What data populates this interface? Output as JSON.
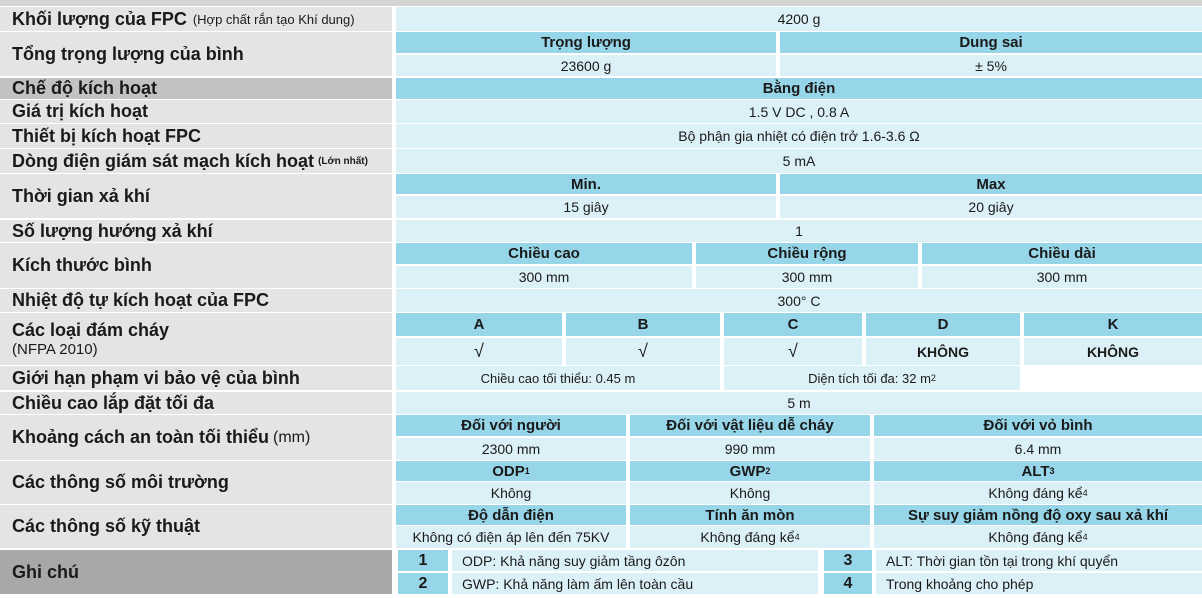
{
  "labels": {
    "mass_fpc": "Khối lượng của FPC",
    "mass_fpc_note": "(Hợp chất rắn tạo Khí dung)",
    "total_weight": "Tổng trọng lượng của bình",
    "activation_mode": "Chế độ kích hoạt",
    "activation_value": "Giá trị kích hoạt",
    "activation_device": "Thiết bị kích hoạt FPC",
    "monitor_current": "Dòng điện giám sát mạch kích hoạt",
    "monitor_current_note": "(Lớn nhất)",
    "discharge_time": "Thời gian xả khí",
    "discharge_dirs": "Số lượng hướng xả khí",
    "size": "Kích thước bình",
    "self_activation": "Nhiệt độ tự kích hoạt của FPC",
    "fire_classes": "Các loại đám cháy",
    "fire_classes_note": "(NFPA 2010)",
    "coverage_limit": "Giới hạn phạm vi bảo vệ của  bình",
    "max_height": "Chiều cao lắp đặt tối đa",
    "safe_distance": "Khoảng cách an toàn tối thiểu",
    "safe_distance_unit": "(mm)",
    "environment": "Các thông số môi trường",
    "technical": "Các thông số kỹ thuật",
    "notes": "Ghi chú"
  },
  "values": {
    "mass_fpc": "4200 g",
    "weight_header": "Trọng lượng",
    "tolerance_header": "Dung sai",
    "weight": "23600 g",
    "tolerance": "± 5%",
    "activation_mode": "Bằng điện",
    "activation_value": "1.5 V DC  , 0.8 A",
    "activation_device": "Bộ phận gia nhiệt có điện trở 1.6-3.6 Ω",
    "monitor_current": "5 mA",
    "min_header": "Min.",
    "max_header": "Max",
    "min_time": "15 giây",
    "max_time": "20 giây",
    "discharge_dirs": "1",
    "height_header": "Chiều cao",
    "width_header": "Chiều rộng",
    "length_header": "Chiều dài",
    "height": "300 mm",
    "width": "300 mm",
    "length": "300 mm",
    "self_activation": "300° C",
    "class_a": "A",
    "class_b": "B",
    "class_c": "C",
    "class_d": "D",
    "class_k": "K",
    "check": "√",
    "no_d": "KHÔNG",
    "no_k": "KHÔNG",
    "min_height": "Chiều cao tối thiểu:  0.45 m",
    "max_area": "Diện tích tối đa: 32 m",
    "max_area_sup": "2",
    "max_install_height": "5 m",
    "people_header": "Đối với người",
    "combustible_header": "Đối với vật liệu dễ cháy",
    "housing_header": "Đối với vỏ bình",
    "people": "2300 mm",
    "combustible": "990 mm",
    "housing": "6.4 mm",
    "odp_header": "ODP",
    "odp_sup": "1",
    "gwp_header": "GWP",
    "gwp_sup": "2",
    "alt_header": "ALT",
    "alt_sup": "3",
    "odp": "Không",
    "gwp": "Không",
    "alt": "Không đáng kể",
    "alt_note_sup": "4",
    "conductivity_header": "Độ dẫn điện",
    "corrosion_header": "Tính ăn mòn",
    "oxygen_header": "Sự suy giảm nồng độ oxy sau xả khí",
    "conductivity": "Không có điện áp lên đến 75KV",
    "corrosion": "Không đáng kể",
    "corrosion_sup": "4",
    "oxygen": "Không đáng kể",
    "oxygen_sup": "4"
  },
  "notes": [
    {
      "num": "1",
      "text": "ODP: Khả năng suy giảm tầng ôzôn"
    },
    {
      "num": "2",
      "text": "GWP: Khả năng làm ấm lên toàn cầu"
    },
    {
      "num": "3",
      "text": "ALT: Thời gian tồn tại trong khí quyển"
    },
    {
      "num": "4",
      "text": "Trong khoảng cho phép"
    }
  ]
}
